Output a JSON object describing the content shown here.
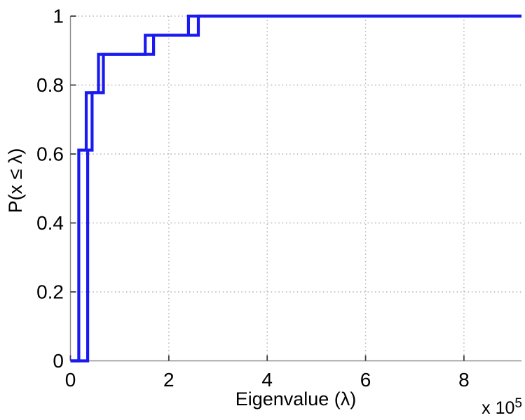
{
  "chart_data": {
    "type": "line",
    "style": "ecdf-stairs",
    "title": "",
    "xlabel": "Eigenvalue (λ)",
    "ylabel": "P(x ≤ λ)",
    "x_offset_label": {
      "base": "x 10",
      "exponent": "5"
    },
    "x_unit_scale": "1e5",
    "xlim": [
      0,
      9.17
    ],
    "ylim": [
      0,
      1
    ],
    "grid": true,
    "legend": null,
    "x_ticks": [
      {
        "v": 0,
        "label": "0"
      },
      {
        "v": 2,
        "label": "2"
      },
      {
        "v": 4,
        "label": "4"
      },
      {
        "v": 6,
        "label": "6"
      },
      {
        "v": 8,
        "label": "8"
      }
    ],
    "y_ticks": [
      {
        "v": 0,
        "label": "0"
      },
      {
        "v": 0.2,
        "label": "0.2"
      },
      {
        "v": 0.4,
        "label": "0.4"
      },
      {
        "v": 0.6,
        "label": "0.6"
      },
      {
        "v": 0.8,
        "label": "0.8"
      },
      {
        "v": 1,
        "label": "1"
      }
    ],
    "n_samples_per_series": 18,
    "line_color": "#1a1af0",
    "line_width": 4.2,
    "grid_color": "#b0b0b0",
    "axis_color": "#8c8c8c",
    "tick_color": "#3d3d3d",
    "text_color": "#000000",
    "series": [
      {
        "name": "ecdf-curve-1",
        "start": {
          "x": 0,
          "p": 0
        },
        "steps": [
          {
            "x": 0.17,
            "p": 0.6111
          },
          {
            "x": 0.32,
            "p": 0.7778
          },
          {
            "x": 0.57,
            "p": 0.8889
          },
          {
            "x": 1.52,
            "p": 0.9444
          },
          {
            "x": 2.4,
            "p": 1.0
          }
        ],
        "end_x": 9.17
      },
      {
        "name": "ecdf-curve-2",
        "start": {
          "x": 0,
          "p": 0
        },
        "steps": [
          {
            "x": 0.35,
            "p": 0.6111
          },
          {
            "x": 0.44,
            "p": 0.7778
          },
          {
            "x": 0.67,
            "p": 0.8889
          },
          {
            "x": 1.69,
            "p": 0.9444
          },
          {
            "x": 2.6,
            "p": 1.0
          }
        ],
        "end_x": 9.17
      }
    ]
  }
}
